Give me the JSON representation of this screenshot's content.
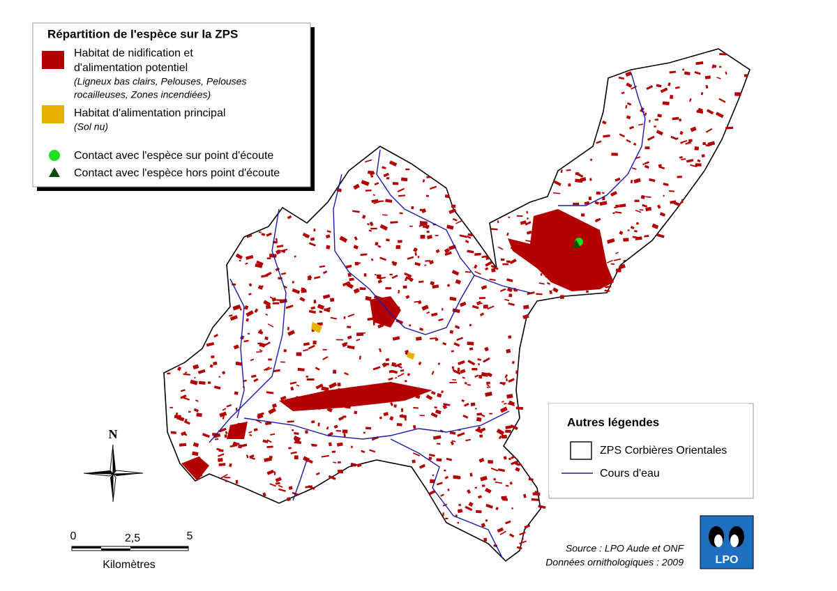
{
  "legend_species": {
    "title": "Répartition de l'espèce sur la ZPS",
    "items": [
      {
        "label": [
          "Habitat de nidification et",
          "d'alimentation potentiel"
        ],
        "note": [
          "(Ligneux bas clairs, Pelouses, Pelouses",
          "rocailleuses, Zones incendiées)"
        ]
      },
      {
        "label": [
          "Habitat d'alimentation principal"
        ],
        "note": [
          "(Sol nu)"
        ]
      },
      {
        "label": [
          "Contact avec l'espèce sur point d'écoute"
        ]
      },
      {
        "label": [
          "Contact avec l'espèce hors point d'écoute"
        ]
      }
    ]
  },
  "legend_other": {
    "title": "Autres légendes",
    "items": [
      "ZPS Corbières Orientales",
      "Cours d'eau"
    ]
  },
  "north": "N",
  "scale": {
    "ticks": [
      "0",
      "2,5",
      "5"
    ],
    "unit": "Kilomètres"
  },
  "source": [
    "Source : LPO Aude et ONF",
    "Données ornithologiques : 2009"
  ],
  "logo": "LPO"
}
